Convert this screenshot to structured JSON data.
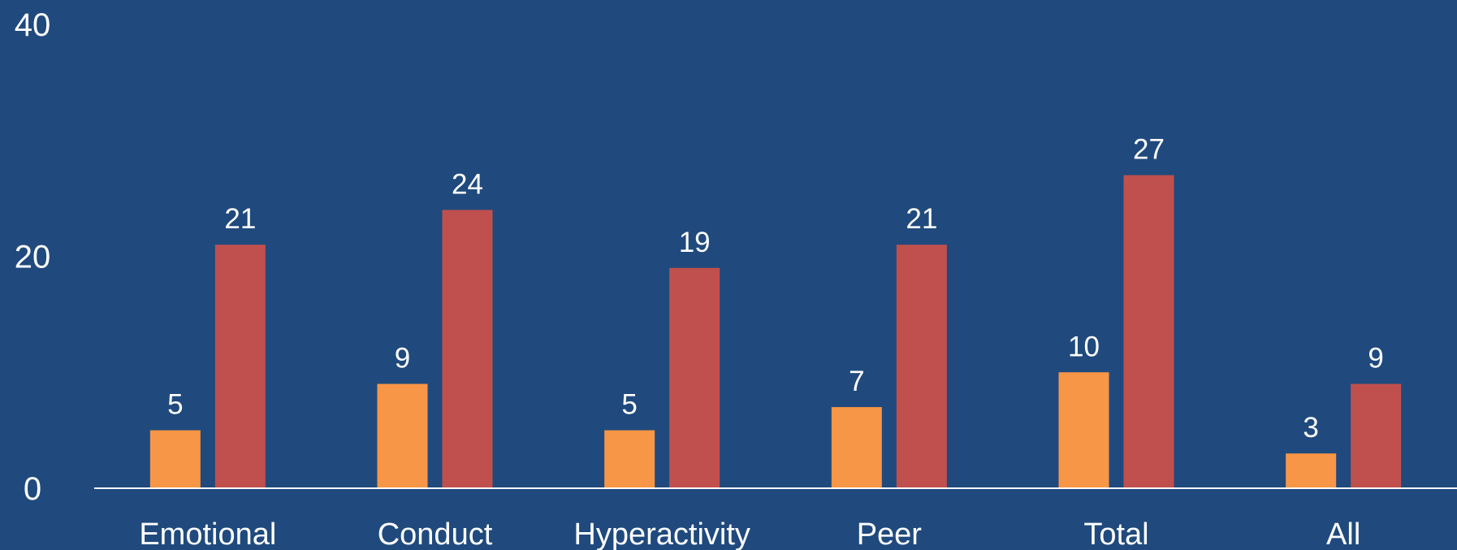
{
  "chart_data": {
    "type": "bar",
    "categories": [
      "Emotional",
      "Conduct",
      "Hyperactivity",
      "Peer",
      "Total",
      "All"
    ],
    "series": [
      {
        "values": [
          5,
          9,
          5,
          7,
          10,
          3
        ],
        "color": "#f79646"
      },
      {
        "values": [
          21,
          24,
          19,
          21,
          27,
          9
        ],
        "color": "#c0504d"
      }
    ],
    "data_labels": [
      [
        "5",
        "9",
        "5",
        "7",
        "10",
        "3"
      ],
      [
        "21",
        "24",
        "19",
        "21",
        "27",
        "9"
      ]
    ],
    "yticks": [
      0,
      20,
      40
    ],
    "ylim": [
      0,
      40
    ],
    "grid": false,
    "legend": "none",
    "title": "",
    "xlabel": "",
    "ylabel": ""
  },
  "colors": {
    "background": "#204a7d",
    "axis": "#ffffff",
    "text": "#ffffff"
  }
}
